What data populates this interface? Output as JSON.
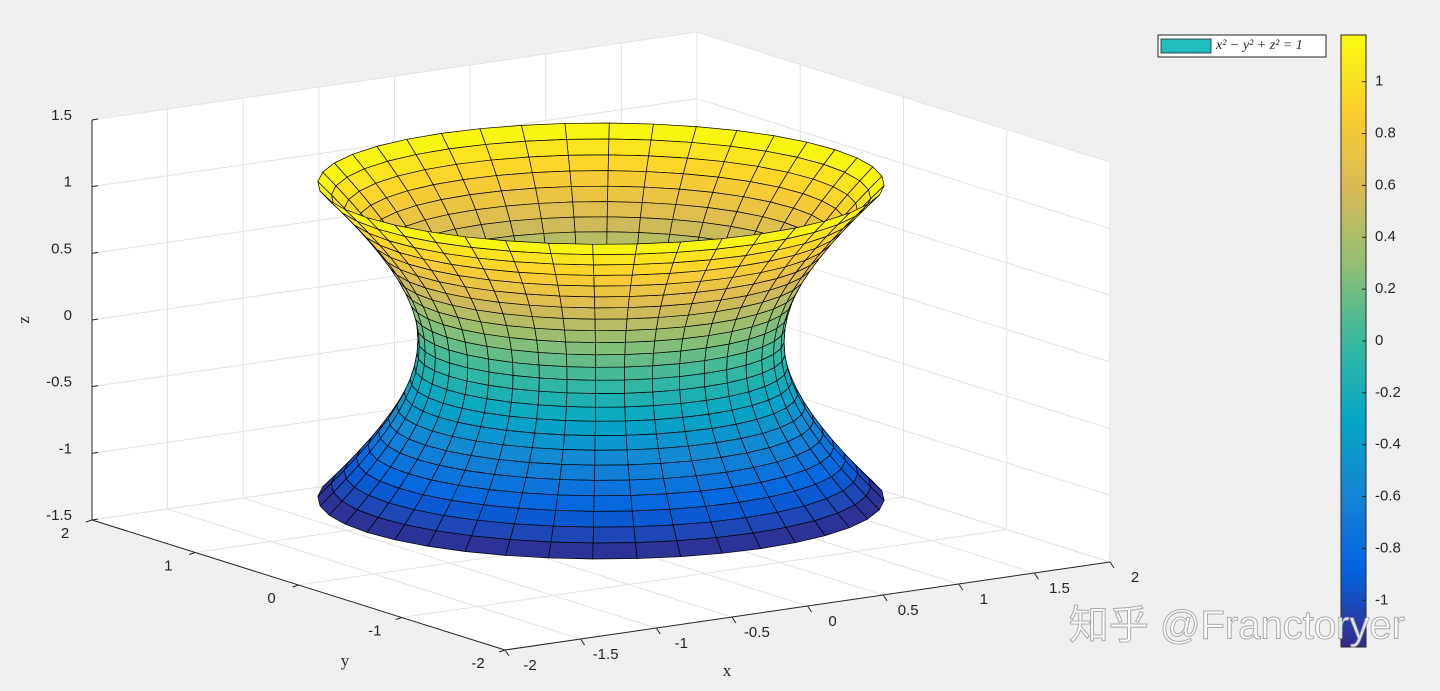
{
  "chart_data": {
    "type": "surface3d",
    "legend": {
      "label": "x² − y² + z² = 1",
      "color": "#1fbdbd"
    },
    "xlabel": "x",
    "ylabel": "y",
    "zlabel": "z",
    "xlim": [
      -2,
      2
    ],
    "ylim": [
      -2,
      2
    ],
    "zlim": [
      -1.5,
      1.5
    ],
    "xticks": [
      -2,
      -1.5,
      -1,
      -0.5,
      0,
      0.5,
      1,
      1.5,
      2
    ],
    "yticks": [
      -2,
      -1,
      0,
      1,
      2
    ],
    "zticks": [
      -1.5,
      -1,
      -0.5,
      0,
      0.5,
      1,
      1.5
    ],
    "colormap": "parula",
    "clim": [
      -1.18,
      1.18
    ],
    "cticks": [
      -1,
      -0.8,
      -0.6,
      -0.4,
      -0.2,
      0,
      0.2,
      0.4,
      0.6,
      0.8,
      1
    ],
    "grid": true
  },
  "watermark": "知乎 @Franctoryer"
}
